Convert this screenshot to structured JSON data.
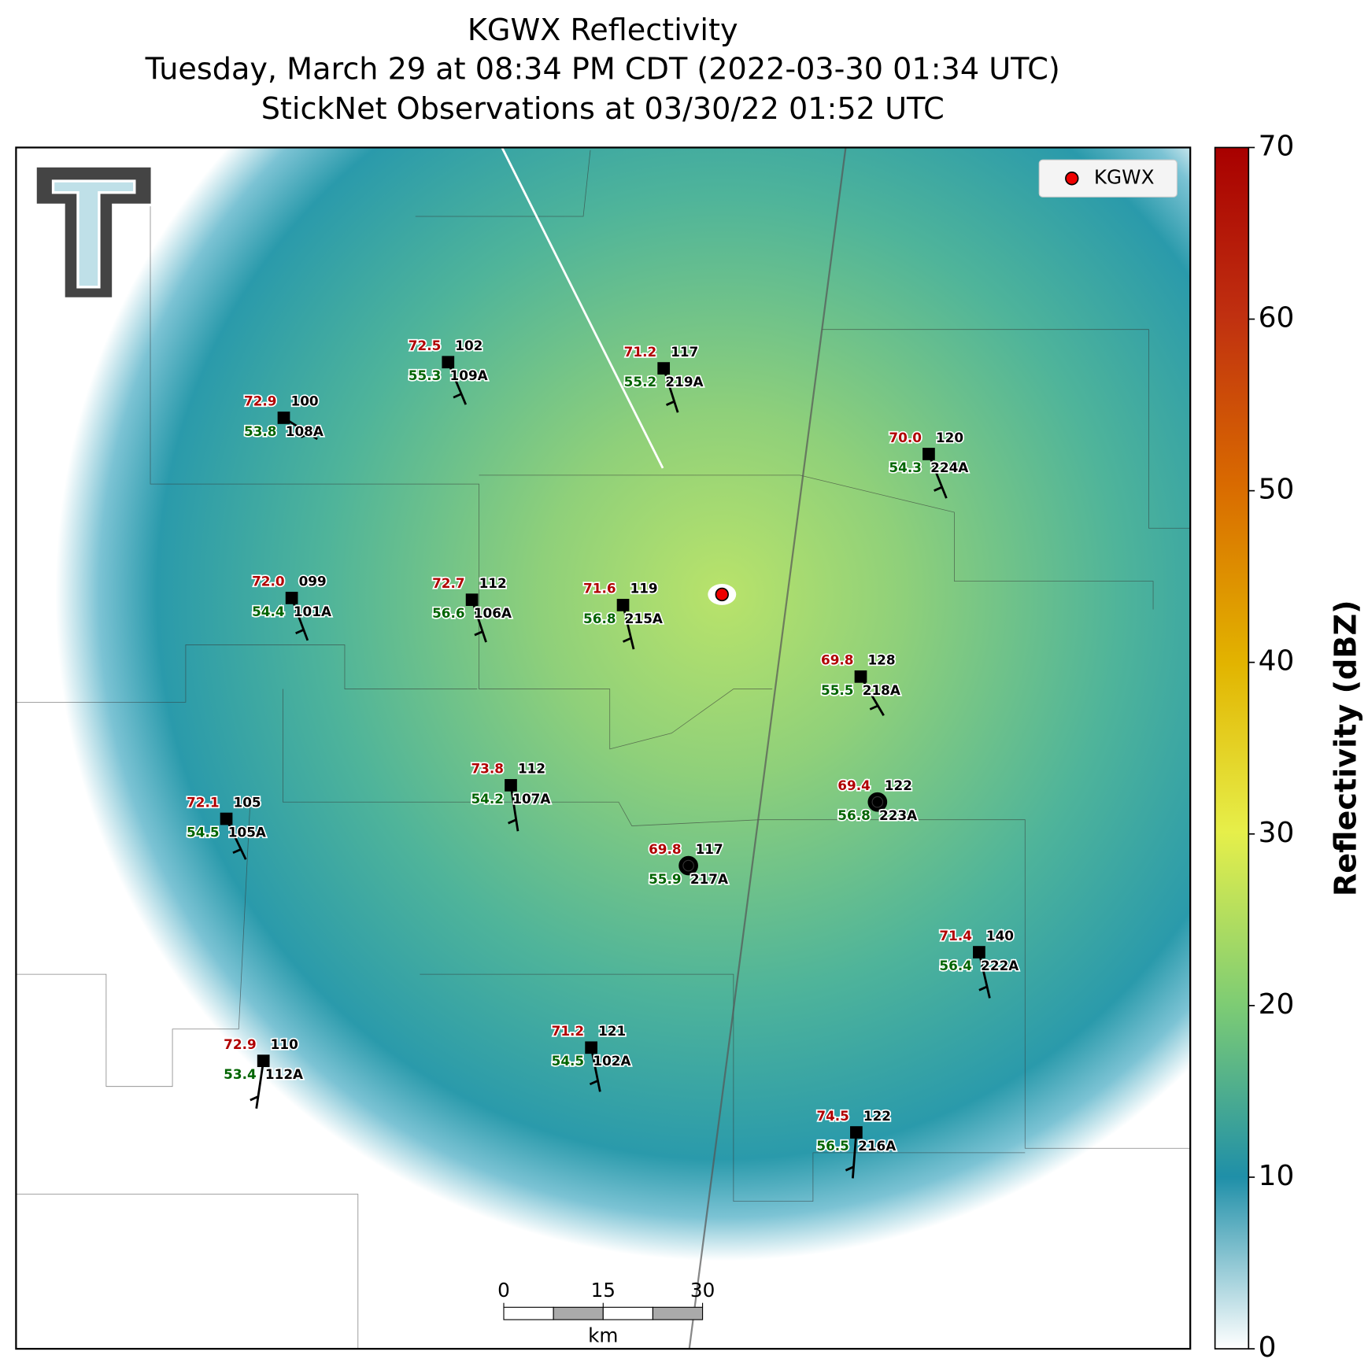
{
  "title": [
    "KGWX Reflectivity",
    "Tuesday, March 29 at 08:34 PM CDT (2022-03-30 01:34 UTC)",
    "StickNet Observations at 03/30/22 01:52 UTC"
  ],
  "legend": {
    "label": "KGWX"
  },
  "colorbar": {
    "label": "Reflectivity (dBZ)",
    "lim": [
      0,
      70
    ],
    "ticks": [
      0,
      10,
      20,
      30,
      40,
      50,
      60,
      70
    ]
  },
  "scale_bar": {
    "ticks": [
      0,
      15,
      30
    ],
    "unit": "km"
  },
  "stations": [
    {
      "temp": "72.5",
      "dew": "55.3",
      "number": "102",
      "id": "109A"
    },
    {
      "temp": "71.2",
      "dew": "55.2",
      "number": "117",
      "id": "219A"
    },
    {
      "temp": "72.9",
      "dew": "53.8",
      "number": "100",
      "id": "108A"
    },
    {
      "temp": "70.0",
      "dew": "54.3",
      "number": "120",
      "id": "224A"
    },
    {
      "temp": "72.0",
      "dew": "54.4",
      "number": "099",
      "id": "101A"
    },
    {
      "temp": "72.7",
      "dew": "56.6",
      "number": "112",
      "id": "106A"
    },
    {
      "temp": "71.6",
      "dew": "56.8",
      "number": "119",
      "id": "215A"
    },
    {
      "temp": "69.8",
      "dew": "55.5",
      "number": "128",
      "id": "218A"
    },
    {
      "temp": "73.8",
      "dew": "54.2",
      "number": "112",
      "id": "107A"
    },
    {
      "temp": "72.1",
      "dew": "54.5",
      "number": "105",
      "id": "105A"
    },
    {
      "temp": "69.4",
      "dew": "56.8",
      "number": "122",
      "id": "223A"
    },
    {
      "temp": "69.8",
      "dew": "55.9",
      "number": "117",
      "id": "217A"
    },
    {
      "temp": "71.4",
      "dew": "56.4",
      "number": "140",
      "id": "222A"
    },
    {
      "temp": "71.2",
      "dew": "54.5",
      "number": "121",
      "id": "102A"
    },
    {
      "temp": "72.9",
      "dew": "53.4",
      "number": "110",
      "id": "112A"
    },
    {
      "temp": "74.5",
      "dew": "56.5",
      "number": "122",
      "id": "216A"
    }
  ]
}
